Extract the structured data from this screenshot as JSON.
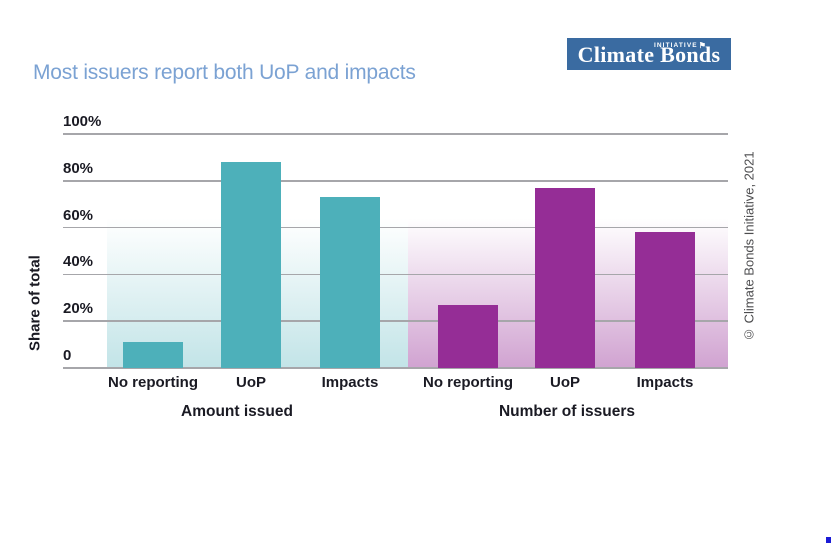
{
  "logo": {
    "text": "Climate Bonds",
    "initiative": "INITIATIVE",
    "flag": "⚑"
  },
  "title": "Most issuers report both UoP and impacts",
  "copyright": "© Climate Bonds Initiative, 2021",
  "chart_data": {
    "type": "bar",
    "title": "Most issuers report both UoP and impacts",
    "ylabel": "Share of total",
    "xlabel": "",
    "ylim": [
      0,
      100
    ],
    "ytick_labels": [
      "100%",
      "80%",
      "60%",
      "40%",
      "20%",
      "0"
    ],
    "ytick_values": [
      100,
      80,
      60,
      40,
      20,
      0
    ],
    "grid": true,
    "legend": false,
    "categories": [
      "No reporting",
      "UoP",
      "Impacts"
    ],
    "series": [
      {
        "name": "Amount issued",
        "values": [
          11,
          88,
          73
        ],
        "color": "#4db0ba",
        "band_rgb": "77,176,186",
        "band_alpha": 0.34
      },
      {
        "name": "Number of issuers",
        "values": [
          27,
          77,
          58
        ],
        "color": "#952d96",
        "band_rgb": "149,45,150",
        "band_alpha": 0.44
      }
    ]
  },
  "colors": {
    "title": "#7ba2d3",
    "axis_text": "#1a1a23",
    "gridline": "#a6a6aa",
    "teal_bar": "#4db0ba",
    "purple_bar": "#952d96",
    "logo_bg": "#3a6ba1",
    "copyright_text": "#4d4d4f",
    "corner_mark": "#1b1bd6"
  }
}
